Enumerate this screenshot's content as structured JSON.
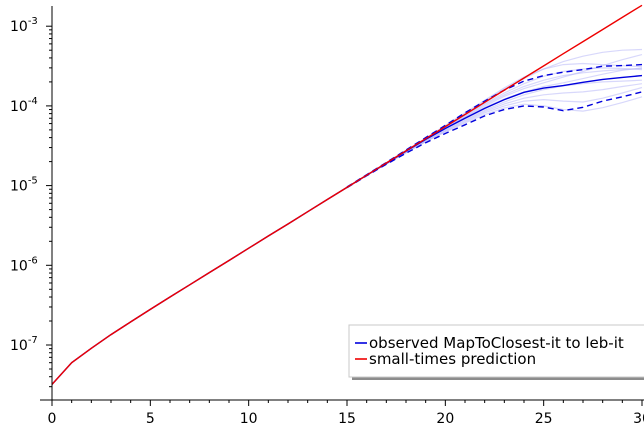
{
  "chart_data": {
    "type": "line",
    "title": "",
    "xlabel": "",
    "ylabel": "",
    "yscale": "log",
    "xlim": [
      0,
      30
    ],
    "ylim": [
      2.5e-08,
      0.0014
    ],
    "grid": false,
    "legend_position": "bottom-right",
    "x_ticks": [
      {
        "value": 0,
        "label": "0"
      },
      {
        "value": 5,
        "label": "5"
      },
      {
        "value": 10,
        "label": "10"
      },
      {
        "value": 15,
        "label": "15"
      },
      {
        "value": 20,
        "label": "20"
      },
      {
        "value": 25,
        "label": "25"
      },
      {
        "value": 30,
        "label": "30"
      }
    ],
    "y_ticks": [
      {
        "value": 1e-07,
        "base": "10",
        "exp": "-7"
      },
      {
        "value": 1e-06,
        "base": "10",
        "exp": "-6"
      },
      {
        "value": 1e-05,
        "base": "10",
        "exp": "-5"
      },
      {
        "value": 0.0001,
        "base": "10",
        "exp": "-4"
      },
      {
        "value": 0.001,
        "base": "10",
        "exp": "-3"
      }
    ],
    "series": [
      {
        "name": "observed MapToClosest-it to leb-it",
        "color": "#0000dd",
        "style": "solid",
        "x": [
          0,
          1,
          2,
          3,
          4,
          5,
          6,
          7,
          8,
          9,
          10,
          11,
          12,
          13,
          14,
          15,
          16,
          17,
          18,
          19,
          20,
          21,
          22,
          23,
          24,
          25,
          26,
          27,
          28,
          29,
          30
        ],
        "values": [
          3.2e-08,
          6e-08,
          9.1e-08,
          1.35e-07,
          1.95e-07,
          2.8e-07,
          4e-07,
          5.7e-07,
          8.1e-07,
          1.15e-06,
          1.64e-06,
          2.33e-06,
          3.3e-06,
          4.7e-06,
          6.7e-06,
          9.5e-06,
          1.35e-05,
          1.9e-05,
          2.7e-05,
          3.8e-05,
          5.2e-05,
          7e-05,
          9.3e-05,
          0.00012,
          0.000148,
          0.000167,
          0.00018,
          0.000198,
          0.000215,
          0.000228,
          0.00024
        ]
      },
      {
        "name": "small-times prediction",
        "color": "#ee0000",
        "style": "solid",
        "x": [
          0,
          1,
          2,
          3,
          4,
          5,
          6,
          7,
          8,
          9,
          10,
          11,
          12,
          13,
          14,
          15,
          16,
          17,
          18,
          19,
          20,
          21,
          22,
          23,
          24,
          25,
          26,
          27,
          28,
          29,
          30
        ],
        "values": [
          3.2e-08,
          6e-08,
          9.1e-08,
          1.35e-07,
          1.95e-07,
          2.8e-07,
          4e-07,
          5.7e-07,
          8.1e-07,
          1.15e-06,
          1.64e-06,
          2.33e-06,
          3.3e-06,
          4.7e-06,
          6.7e-06,
          9.5e-06,
          1.35e-05,
          1.92e-05,
          2.73e-05,
          3.88e-05,
          5.5e-05,
          7.8e-05,
          0.000111,
          0.000158,
          0.000224,
          0.000318,
          0.000452,
          0.00064,
          0.00091,
          0.00129,
          0.00183
        ]
      },
      {
        "name": "",
        "color": "#0000dd",
        "style": "dashed",
        "x": [
          15,
          16,
          17,
          18,
          19,
          20,
          21,
          22,
          23,
          24,
          25,
          26,
          27,
          28,
          29,
          30
        ],
        "values": [
          9.6e-06,
          1.37e-05,
          1.95e-05,
          2.8e-05,
          4e-05,
          5.7e-05,
          8.2e-05,
          0.000115,
          0.000158,
          0.000205,
          0.00024,
          0.000265,
          0.000285,
          0.000315,
          0.00032,
          0.00033
        ]
      },
      {
        "name": "",
        "color": "#0000dd",
        "style": "dashed",
        "x": [
          15,
          16,
          17,
          18,
          19,
          20,
          21,
          22,
          23,
          24,
          25,
          26,
          27,
          28,
          29,
          30
        ],
        "values": [
          9.4e-06,
          1.33e-05,
          1.85e-05,
          2.55e-05,
          3.45e-05,
          4.5e-05,
          5.8e-05,
          7.5e-05,
          9e-05,
          0.0001,
          9.7e-05,
          8.7e-05,
          9.6e-05,
          0.000115,
          0.00013,
          0.00015
        ]
      }
    ],
    "trial_curves": {
      "color": "#b8b8f8",
      "x": [
        15,
        16,
        17,
        18,
        19,
        20,
        21,
        22,
        23,
        24,
        25,
        26,
        27,
        28,
        29,
        30
      ],
      "runs": [
        [
          9.5e-06,
          1.36e-05,
          1.93e-05,
          2.75e-05,
          3.9e-05,
          5.6e-05,
          8e-05,
          0.000115,
          0.000162,
          0.00022,
          0.00029,
          0.00036,
          0.00042,
          0.00047,
          0.0005,
          0.00051
        ],
        [
          9.5e-06,
          1.35e-05,
          1.9e-05,
          2.7e-05,
          3.8e-05,
          5.3e-05,
          7.3e-05,
          0.0001,
          0.000132,
          0.000165,
          0.000195,
          0.00023,
          0.00027,
          0.00032,
          0.00038,
          0.00044
        ],
        [
          9.5e-06,
          1.34e-05,
          1.88e-05,
          2.6e-05,
          3.6e-05,
          4.8e-05,
          6.3e-05,
          8.2e-05,
          0.0001,
          0.000115,
          0.00012,
          0.000115,
          0.000112,
          0.000125,
          0.000145,
          0.00017
        ],
        [
          9.5e-06,
          1.35e-05,
          1.92e-05,
          2.72e-05,
          3.85e-05,
          5.4e-05,
          7.5e-05,
          0.000104,
          0.000138,
          0.000175,
          0.00021,
          0.00024,
          0.00026,
          0.000275,
          0.000285,
          0.000295
        ],
        [
          9.5e-06,
          1.34e-05,
          1.86e-05,
          2.58e-05,
          3.55e-05,
          4.7e-05,
          6.1e-05,
          7.8e-05,
          9.4e-05,
          0.000105,
          0.0001,
          9e-05,
          8.6e-05,
          9.5e-05,
          0.00011,
          0.00013
        ],
        [
          9.5e-06,
          1.36e-05,
          1.94e-05,
          2.78e-05,
          3.95e-05,
          5.7e-05,
          8.2e-05,
          0.000118,
          0.000168,
          0.00023,
          0.00029,
          0.00033,
          0.00034,
          0.00033,
          0.00032,
          0.00031
        ],
        [
          9.5e-06,
          1.35e-05,
          1.89e-05,
          2.66e-05,
          3.7e-05,
          5e-05,
          6.7e-05,
          8.8e-05,
          0.000112,
          0.000138,
          0.00016,
          0.000178,
          0.00019,
          0.0002,
          0.000205,
          0.00021
        ],
        [
          9.5e-06,
          1.35e-05,
          1.91e-05,
          2.7e-05,
          3.8e-05,
          5.3e-05,
          7.2e-05,
          9.6e-05,
          0.000122,
          0.00015,
          0.000175,
          0.000195,
          0.00022,
          0.00025,
          0.00028,
          0.0003
        ],
        [
          9.5e-06,
          1.34e-05,
          1.87e-05,
          2.6e-05,
          3.6e-05,
          4.9e-05,
          6.5e-05,
          8.5e-05,
          0.000106,
          0.000125,
          0.000138,
          0.000145,
          0.00015,
          0.00016,
          0.000175,
          0.00019
        ],
        [
          9.5e-06,
          1.36e-05,
          1.93e-05,
          2.75e-05,
          3.9e-05,
          5.5e-05,
          7.7e-05,
          0.000107,
          0.000145,
          0.00019,
          0.000235,
          0.00027,
          0.00029,
          0.0003,
          0.000295,
          0.000285
        ]
      ]
    }
  }
}
